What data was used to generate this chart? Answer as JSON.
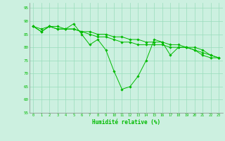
{
  "line1": [
    88,
    86,
    88,
    87,
    87,
    89,
    85,
    81,
    83,
    79,
    71,
    64,
    65,
    69,
    75,
    83,
    82,
    77,
    80,
    80,
    79,
    77,
    76,
    76
  ],
  "line2": [
    88,
    86,
    88,
    87,
    87,
    87,
    86,
    85,
    84,
    84,
    83,
    82,
    82,
    81,
    81,
    81,
    81,
    80,
    80,
    80,
    79,
    78,
    77,
    76
  ],
  "line3": [
    88,
    87,
    88,
    88,
    87,
    87,
    86,
    86,
    85,
    85,
    84,
    84,
    83,
    83,
    82,
    82,
    82,
    81,
    81,
    80,
    80,
    79,
    77,
    76
  ],
  "x": [
    0,
    1,
    2,
    3,
    4,
    5,
    6,
    7,
    8,
    9,
    10,
    11,
    12,
    13,
    14,
    15,
    16,
    17,
    18,
    19,
    20,
    21,
    22,
    23
  ],
  "line_color": "#00BB00",
  "bg_color": "#CCF0E0",
  "grid_color": "#99DDBB",
  "xlabel": "Humidité relative (%)",
  "ylim": [
    55,
    97
  ],
  "yticks": [
    55,
    60,
    65,
    70,
    75,
    80,
    85,
    90,
    95
  ],
  "xlim": [
    -0.5,
    23.5
  ]
}
